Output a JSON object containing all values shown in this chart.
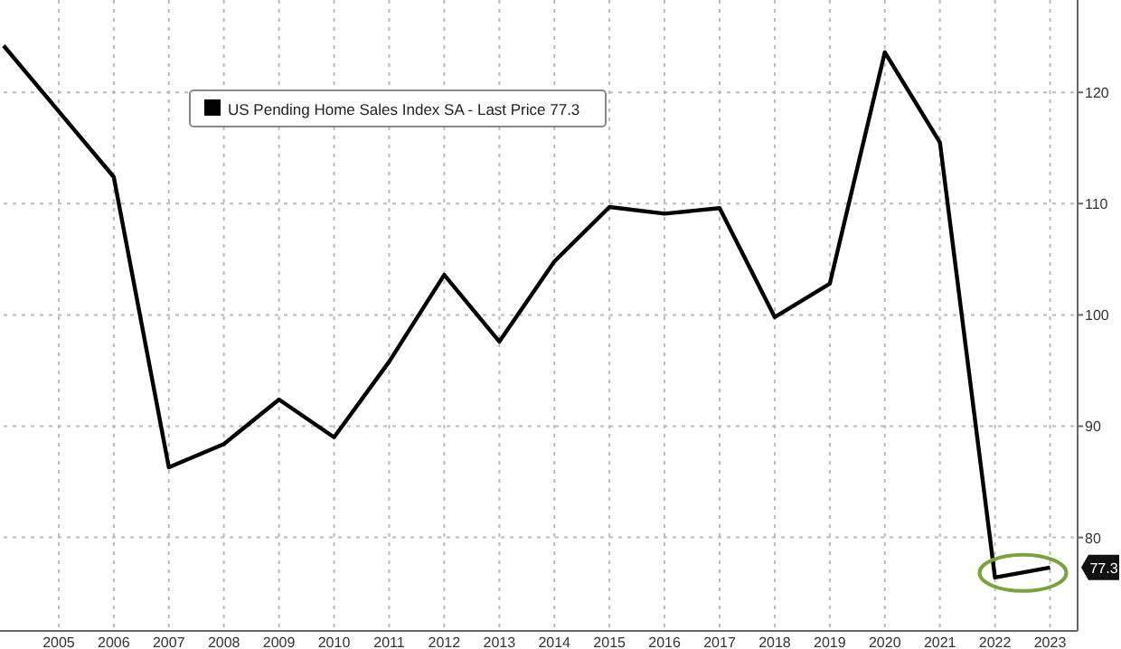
{
  "chart_data": {
    "type": "line",
    "x": [
      2004,
      2005,
      2006,
      2007,
      2008,
      2009,
      2010,
      2011,
      2012,
      2013,
      2014,
      2015,
      2016,
      2017,
      2018,
      2019,
      2020,
      2021,
      2022,
      2023
    ],
    "series": [
      {
        "name": "US Pending Home Sales Index SA - Last Price 77.3",
        "color": "#000000",
        "values": [
          124.2,
          118.3,
          112.4,
          86.3,
          88.4,
          92.4,
          89.0,
          95.8,
          103.6,
          97.6,
          104.8,
          109.7,
          109.1,
          109.6,
          99.8,
          102.8,
          123.6,
          115.5,
          76.4,
          77.3
        ]
      }
    ],
    "xlim": [
      2004,
      2023.5
    ],
    "xticks": [
      2005,
      2006,
      2007,
      2008,
      2009,
      2010,
      2011,
      2012,
      2013,
      2014,
      2015,
      2016,
      2017,
      2018,
      2019,
      2020,
      2021,
      2022,
      2023
    ],
    "ylim": [
      71.6,
      128.3
    ],
    "yticks": [
      80,
      90,
      100,
      110,
      120
    ],
    "grid": true,
    "legend": "top left",
    "marker": "none",
    "line_style": "solid",
    "annotations": [
      {
        "text": "77.3",
        "x": 2023,
        "y": 77.3
      }
    ]
  }
}
